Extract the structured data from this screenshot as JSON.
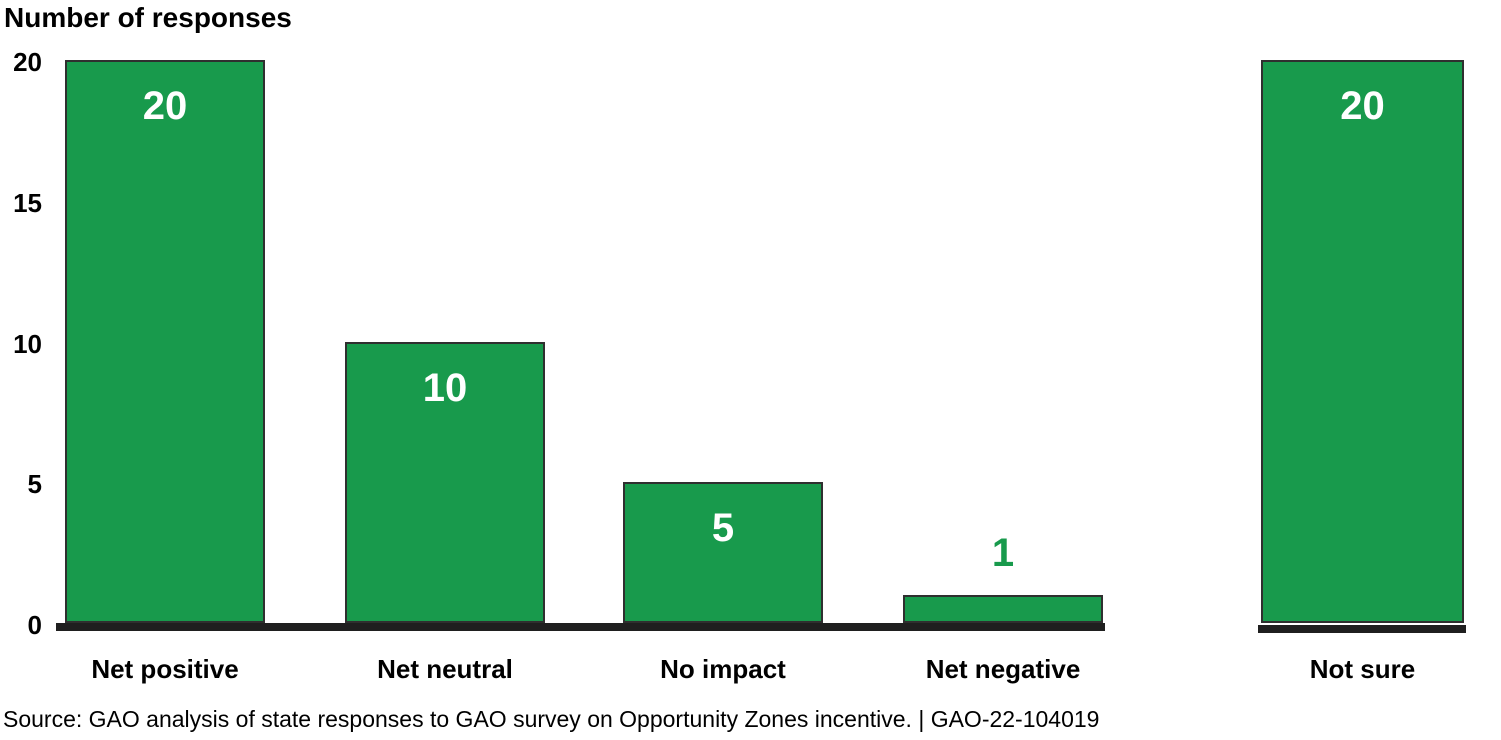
{
  "title": "Number of responses",
  "source_line": "Source: GAO analysis of state responses to GAO survey on Opportunity Zones incentive.  |  GAO-22-104019",
  "colors": {
    "bar_fill": "#189a4c",
    "bar_border": "#2f2f2f",
    "axis": "#1f1f1f",
    "value_label_inside": "#ffffff",
    "value_label_outside": "#189a4c",
    "text": "#000000"
  },
  "chart_data": {
    "type": "bar",
    "title": "Number of responses",
    "categories": [
      "Net positive",
      "Net neutral",
      "No impact",
      "Net negative",
      "Not sure"
    ],
    "values": [
      20,
      10,
      5,
      1,
      20
    ],
    "value_label_placement": [
      "inside",
      "inside",
      "inside",
      "above",
      "inside"
    ],
    "xlabel": "",
    "ylabel": "Number of responses",
    "ylim": [
      0,
      20
    ],
    "yticks": [
      0,
      5,
      10,
      15,
      20
    ],
    "grid": false,
    "legend": false,
    "bar_color": "#189a4c",
    "notes": "Not sure bar is visually separated from the four impact-rating bars"
  }
}
